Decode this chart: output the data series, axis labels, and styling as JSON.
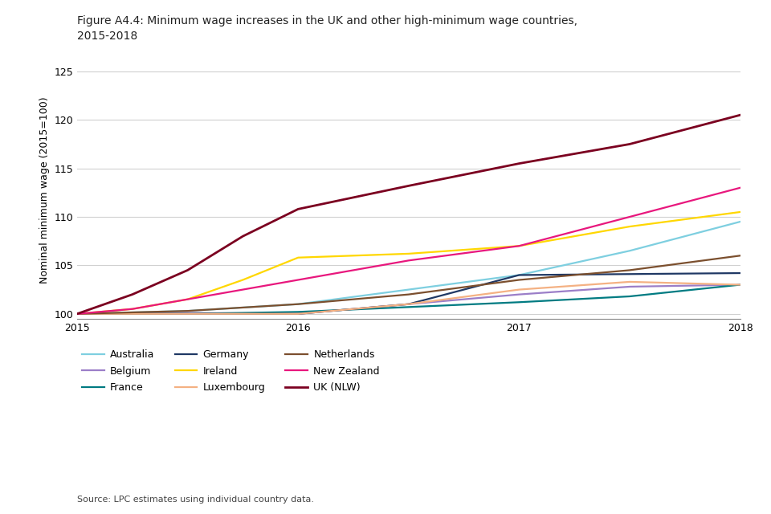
{
  "title": "Figure A4.4: Minimum wage increases in the UK and other high-minimum wage countries,\n2015-2018",
  "ylabel": "Nominal minimum wage (2015=100)",
  "xlabel": "",
  "source": "Source: LPC estimates using individual country data.",
  "ylim": [
    99.5,
    126
  ],
  "yticks": [
    100,
    105,
    110,
    115,
    120,
    125
  ],
  "xlim": [
    2015,
    2018
  ],
  "xticks": [
    2015,
    2016,
    2017,
    2018
  ],
  "series": [
    {
      "label": "Australia",
      "color": "#7ecfe0",
      "linewidth": 1.6,
      "data": [
        [
          2015,
          100
        ],
        [
          2015.5,
          100.3
        ],
        [
          2016,
          101.0
        ],
        [
          2016.5,
          102.5
        ],
        [
          2017,
          104.0
        ],
        [
          2017.5,
          106.5
        ],
        [
          2018,
          109.5
        ]
      ]
    },
    {
      "label": "Belgium",
      "color": "#9b7ec8",
      "linewidth": 1.6,
      "data": [
        [
          2015,
          100
        ],
        [
          2015.5,
          100.1
        ],
        [
          2016,
          100.0
        ],
        [
          2016.5,
          101.0
        ],
        [
          2017,
          102.0
        ],
        [
          2017.5,
          102.8
        ],
        [
          2018,
          103.0
        ]
      ]
    },
    {
      "label": "France",
      "color": "#007b82",
      "linewidth": 1.6,
      "data": [
        [
          2015,
          100
        ],
        [
          2015.5,
          100.0
        ],
        [
          2016,
          100.2
        ],
        [
          2016.5,
          100.7
        ],
        [
          2017,
          101.2
        ],
        [
          2017.5,
          101.8
        ],
        [
          2018,
          103.0
        ]
      ]
    },
    {
      "label": "Germany",
      "color": "#1f3864",
      "linewidth": 1.6,
      "data": [
        [
          2015,
          100
        ],
        [
          2015.5,
          100.0
        ],
        [
          2016,
          100.0
        ],
        [
          2016.5,
          101.0
        ],
        [
          2017,
          104.0
        ],
        [
          2017.5,
          104.1
        ],
        [
          2018,
          104.2
        ]
      ]
    },
    {
      "label": "Ireland",
      "color": "#ffd700",
      "linewidth": 1.6,
      "data": [
        [
          2015,
          100
        ],
        [
          2015.25,
          100.5
        ],
        [
          2015.5,
          101.5
        ],
        [
          2015.75,
          103.5
        ],
        [
          2016,
          105.8
        ],
        [
          2016.5,
          106.2
        ],
        [
          2017,
          107.0
        ],
        [
          2017.5,
          109.0
        ],
        [
          2018,
          110.5
        ]
      ]
    },
    {
      "label": "Luxembourg",
      "color": "#f4b183",
      "linewidth": 1.6,
      "data": [
        [
          2015,
          100
        ],
        [
          2015.5,
          100.0
        ],
        [
          2016,
          100.0
        ],
        [
          2016.5,
          101.0
        ],
        [
          2017,
          102.5
        ],
        [
          2017.5,
          103.3
        ],
        [
          2018,
          103.0
        ]
      ]
    },
    {
      "label": "Netherlands",
      "color": "#7b4f2e",
      "linewidth": 1.6,
      "data": [
        [
          2015,
          100
        ],
        [
          2015.5,
          100.3
        ],
        [
          2016,
          101.0
        ],
        [
          2016.5,
          102.0
        ],
        [
          2017,
          103.5
        ],
        [
          2017.5,
          104.5
        ],
        [
          2018,
          106.0
        ]
      ]
    },
    {
      "label": "New Zealand",
      "color": "#e8177d",
      "linewidth": 1.6,
      "data": [
        [
          2015,
          100
        ],
        [
          2015.25,
          100.5
        ],
        [
          2015.5,
          101.5
        ],
        [
          2015.75,
          102.5
        ],
        [
          2016,
          103.5
        ],
        [
          2016.5,
          105.5
        ],
        [
          2017,
          107.0
        ],
        [
          2017.5,
          110.0
        ],
        [
          2018,
          113.0
        ]
      ]
    },
    {
      "label": "UK (NLW)",
      "color": "#7b0020",
      "linewidth": 2.0,
      "data": [
        [
          2015,
          100
        ],
        [
          2015.25,
          102.0
        ],
        [
          2015.5,
          104.5
        ],
        [
          2015.75,
          108.0
        ],
        [
          2016,
          110.8
        ],
        [
          2016.5,
          113.2
        ],
        [
          2017,
          115.5
        ],
        [
          2017.5,
          117.5
        ],
        [
          2018,
          120.5
        ]
      ]
    }
  ],
  "legend_order": [
    "Australia",
    "Belgium",
    "France",
    "Germany",
    "Ireland",
    "Luxembourg",
    "Netherlands",
    "New Zealand",
    "UK (NLW)"
  ],
  "legend_ncol": 3,
  "legend_fontsize": 9,
  "title_fontsize": 10,
  "axis_label_fontsize": 9,
  "tick_fontsize": 9,
  "background_color": "#ffffff",
  "grid_color": "#d0d0d0"
}
